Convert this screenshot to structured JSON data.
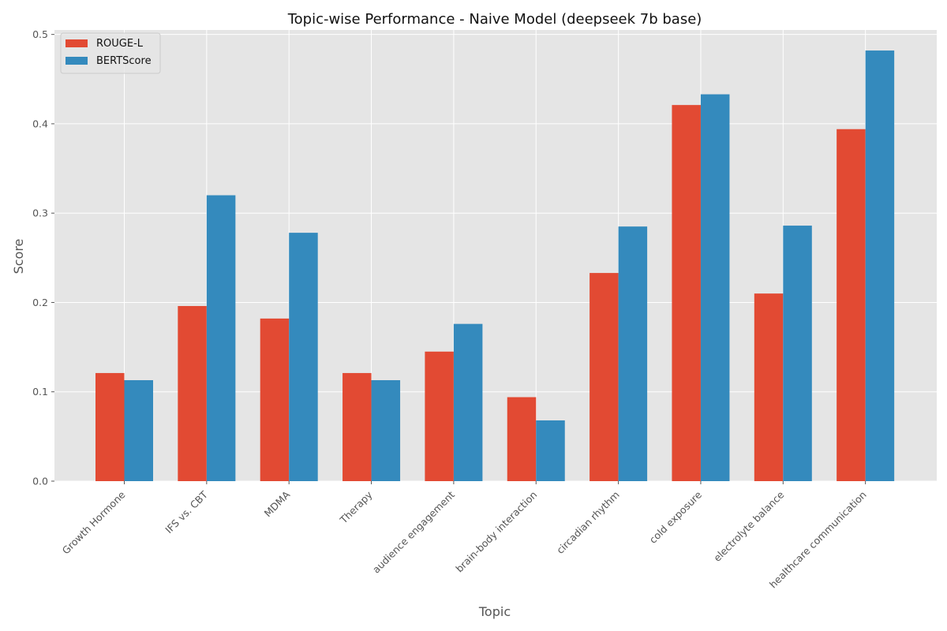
{
  "chart_data": {
    "type": "bar",
    "title": "Topic-wise Performance - Naive Model (deepseek 7b base)",
    "xlabel": "Topic",
    "ylabel": "Score",
    "ylim": [
      0,
      0.505
    ],
    "y_ticks": [
      0.0,
      0.1,
      0.2,
      0.3,
      0.4,
      0.5
    ],
    "y_tick_labels": [
      "0.0",
      "0.1",
      "0.2",
      "0.3",
      "0.4",
      "0.5"
    ],
    "grid": true,
    "legend_position": "top-left",
    "categories": [
      "Growth Hormone",
      "IFS vs. CBT",
      "MDMA",
      "Therapy",
      "audience engagement",
      "brain-body interaction",
      "circadian rhythm",
      "cold exposure",
      "electrolyte balance",
      "healthcare communication"
    ],
    "series": [
      {
        "name": "ROUGE-L",
        "color": "#E24A33",
        "values": [
          0.121,
          0.196,
          0.182,
          0.121,
          0.145,
          0.094,
          0.233,
          0.421,
          0.21,
          0.394
        ]
      },
      {
        "name": "BERTScore",
        "color": "#348ABD",
        "values": [
          0.113,
          0.32,
          0.278,
          0.113,
          0.176,
          0.068,
          0.285,
          0.433,
          0.286,
          0.482
        ]
      }
    ]
  }
}
